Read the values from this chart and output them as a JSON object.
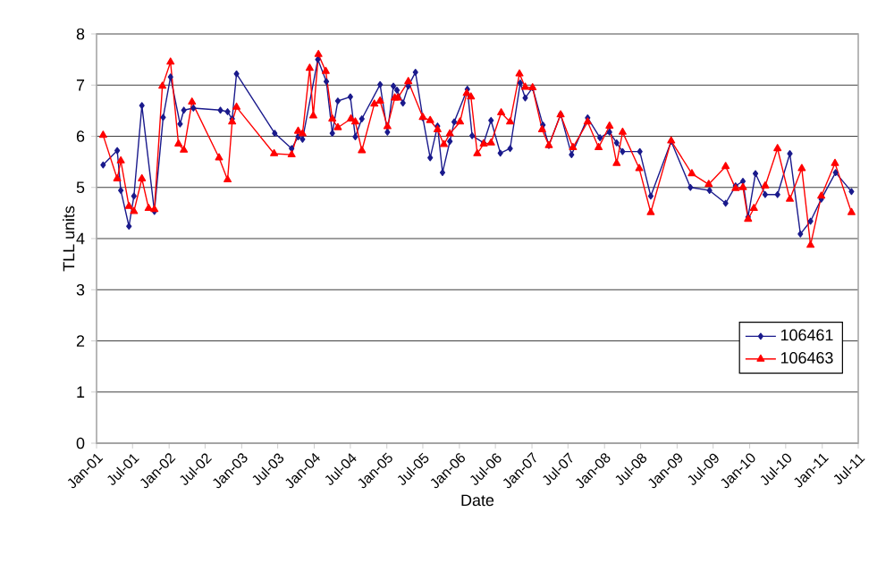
{
  "chart_data": {
    "type": "line",
    "xlabel": "Date",
    "ylabel": "TLL units",
    "ylim": [
      0,
      8
    ],
    "yticks": [
      0,
      1,
      2,
      3,
      4,
      5,
      6,
      7,
      8
    ],
    "xlim": [
      "2001-01",
      "2011-07"
    ],
    "xticks": [
      {
        "value": "2001-01",
        "label": "Jan-01"
      },
      {
        "value": "2001-07",
        "label": "Jul-01"
      },
      {
        "value": "2002-01",
        "label": "Jan-02"
      },
      {
        "value": "2002-07",
        "label": "Jul-02"
      },
      {
        "value": "2003-01",
        "label": "Jan-03"
      },
      {
        "value": "2003-07",
        "label": "Jul-03"
      },
      {
        "value": "2004-01",
        "label": "Jan-04"
      },
      {
        "value": "2004-07",
        "label": "Jul-04"
      },
      {
        "value": "2005-01",
        "label": "Jan-05"
      },
      {
        "value": "2005-07",
        "label": "Jul-05"
      },
      {
        "value": "2006-01",
        "label": "Jan-06"
      },
      {
        "value": "2006-07",
        "label": "Jul-06"
      },
      {
        "value": "2007-01",
        "label": "Jan-07"
      },
      {
        "value": "2007-07",
        "label": "Jul-07"
      },
      {
        "value": "2008-01",
        "label": "Jan-08"
      },
      {
        "value": "2008-07",
        "label": "Jul-08"
      },
      {
        "value": "2009-01",
        "label": "Jan-09"
      },
      {
        "value": "2009-07",
        "label": "Jul-09"
      },
      {
        "value": "2010-01",
        "label": "Jan-10"
      },
      {
        "value": "2010-07",
        "label": "Jul-10"
      },
      {
        "value": "2011-01",
        "label": "Jan-11"
      },
      {
        "value": "2011-07",
        "label": "Jul-11"
      }
    ],
    "grid": "y",
    "legend": "bottom right",
    "line_style": "solid",
    "series": [
      {
        "name": "106461",
        "color": "#1a1a8c",
        "marker": "diamond",
        "x": [
          "2001-02-03",
          "2001-04-15",
          "2001-05-03",
          "2001-06-13",
          "2001-07-08",
          "2001-08-17",
          "2001-10-19",
          "2001-12-02",
          "2002-01-08",
          "2002-02-25",
          "2002-03-16",
          "2002-05-03",
          "2002-09-16",
          "2002-10-22",
          "2002-11-14",
          "2002-12-06",
          "2003-06-16",
          "2003-09-09",
          "2003-10-12",
          "2003-11-03",
          "2004-01-19",
          "2004-03-02",
          "2004-04-01",
          "2004-04-29",
          "2004-07-01",
          "2004-07-26",
          "2004-08-28",
          "2004-11-28",
          "2005-01-04",
          "2005-02-03",
          "2005-02-21",
          "2005-03-23",
          "2005-04-19",
          "2005-05-25",
          "2005-07-01",
          "2005-08-07",
          "2005-09-13",
          "2005-10-08",
          "2005-11-14",
          "2005-12-06",
          "2006-02-10",
          "2006-03-06",
          "2006-05-03",
          "2006-06-09",
          "2006-07-26",
          "2006-09-13",
          "2006-11-03",
          "2006-11-28",
          "2007-01-04",
          "2007-02-25",
          "2007-03-27",
          "2007-05-25",
          "2007-07-19",
          "2007-10-08",
          "2007-12-09",
          "2008-01-26",
          "2008-03-02",
          "2008-04-01",
          "2008-06-27",
          "2008-08-21",
          "2008-12-02",
          "2009-03-09",
          "2009-06-13",
          "2009-09-02",
          "2009-10-22",
          "2009-11-28",
          "2009-12-24",
          "2010-01-30",
          "2010-03-20",
          "2010-05-21",
          "2010-07-22",
          "2010-09-13",
          "2010-11-03",
          "2010-12-27",
          "2011-03-09",
          "2011-05-28"
        ],
        "values": [
          5.44,
          5.72,
          4.94,
          4.24,
          4.83,
          6.6,
          4.53,
          6.37,
          7.16,
          6.24,
          6.51,
          6.55,
          6.51,
          6.48,
          6.34,
          7.22,
          6.06,
          5.76,
          5.99,
          5.94,
          7.5,
          7.07,
          6.06,
          6.69,
          6.77,
          5.99,
          6.34,
          7.01,
          6.08,
          6.98,
          6.9,
          6.65,
          6.98,
          7.25,
          6.36,
          5.58,
          6.2,
          5.29,
          5.9,
          6.28,
          6.92,
          6.01,
          5.87,
          6.31,
          5.67,
          5.76,
          7.04,
          6.75,
          6.95,
          6.22,
          5.82,
          6.43,
          5.64,
          6.36,
          5.97,
          6.08,
          5.87,
          5.7,
          5.7,
          4.83,
          5.9,
          5.0,
          4.94,
          4.69,
          5.03,
          5.12,
          4.42,
          5.27,
          4.86,
          4.86,
          5.66,
          4.09,
          4.34,
          4.77,
          5.29,
          4.92
        ]
      },
      {
        "name": "106463",
        "color": "#ff0000",
        "marker": "triangle",
        "x": [
          "2001-02-03",
          "2001-04-15",
          "2001-05-03",
          "2001-06-13",
          "2001-07-08",
          "2001-08-17",
          "2001-09-20",
          "2001-10-19",
          "2001-11-28",
          "2002-01-08",
          "2002-02-17",
          "2002-03-16",
          "2002-04-26",
          "2002-09-09",
          "2002-10-22",
          "2002-11-14",
          "2002-12-06",
          "2003-06-13",
          "2003-09-09",
          "2003-10-12",
          "2003-11-03",
          "2003-12-09",
          "2003-12-27",
          "2004-01-22",
          "2004-02-28",
          "2004-04-01",
          "2004-04-29",
          "2004-07-04",
          "2004-07-26",
          "2004-08-28",
          "2004-10-30",
          "2004-11-28",
          "2005-01-04",
          "2005-02-10",
          "2005-02-25",
          "2005-04-19",
          "2005-07-01",
          "2005-08-07",
          "2005-09-13",
          "2005-10-15",
          "2005-11-14",
          "2006-01-04",
          "2006-02-07",
          "2006-02-28",
          "2006-04-01",
          "2006-05-03",
          "2006-06-09",
          "2006-07-30",
          "2006-09-13",
          "2006-10-30",
          "2006-11-28",
          "2007-01-04",
          "2007-02-21",
          "2007-03-27",
          "2007-05-25",
          "2007-07-26",
          "2007-10-08",
          "2007-12-02",
          "2008-01-26",
          "2008-03-02",
          "2008-04-01",
          "2008-06-24",
          "2008-08-21",
          "2008-12-02",
          "2009-03-16",
          "2009-06-09",
          "2009-09-02",
          "2009-10-22",
          "2009-11-28",
          "2009-12-24",
          "2010-01-22",
          "2010-03-20",
          "2010-05-21",
          "2010-07-22",
          "2010-09-20",
          "2010-11-03",
          "2010-12-27",
          "2011-03-06",
          "2011-05-28"
        ],
        "values": [
          6.02,
          5.17,
          5.52,
          4.63,
          4.53,
          5.17,
          4.59,
          4.57,
          6.98,
          7.45,
          5.85,
          5.73,
          6.67,
          5.58,
          5.15,
          6.28,
          6.57,
          5.66,
          5.64,
          6.1,
          6.05,
          7.33,
          6.4,
          7.6,
          7.27,
          6.34,
          6.17,
          6.34,
          6.28,
          5.72,
          6.63,
          6.69,
          6.19,
          6.75,
          6.75,
          7.07,
          6.37,
          6.31,
          6.13,
          5.84,
          6.05,
          6.28,
          6.84,
          6.77,
          5.66,
          5.85,
          5.87,
          6.46,
          6.28,
          7.22,
          6.96,
          6.95,
          6.13,
          5.82,
          6.42,
          5.78,
          6.28,
          5.78,
          6.2,
          5.47,
          6.08,
          5.37,
          4.51,
          5.91,
          5.27,
          5.06,
          5.41,
          4.98,
          5.0,
          4.38,
          4.59,
          5.03,
          5.76,
          4.77,
          5.37,
          3.87,
          4.83,
          5.47,
          4.51
        ]
      }
    ]
  }
}
